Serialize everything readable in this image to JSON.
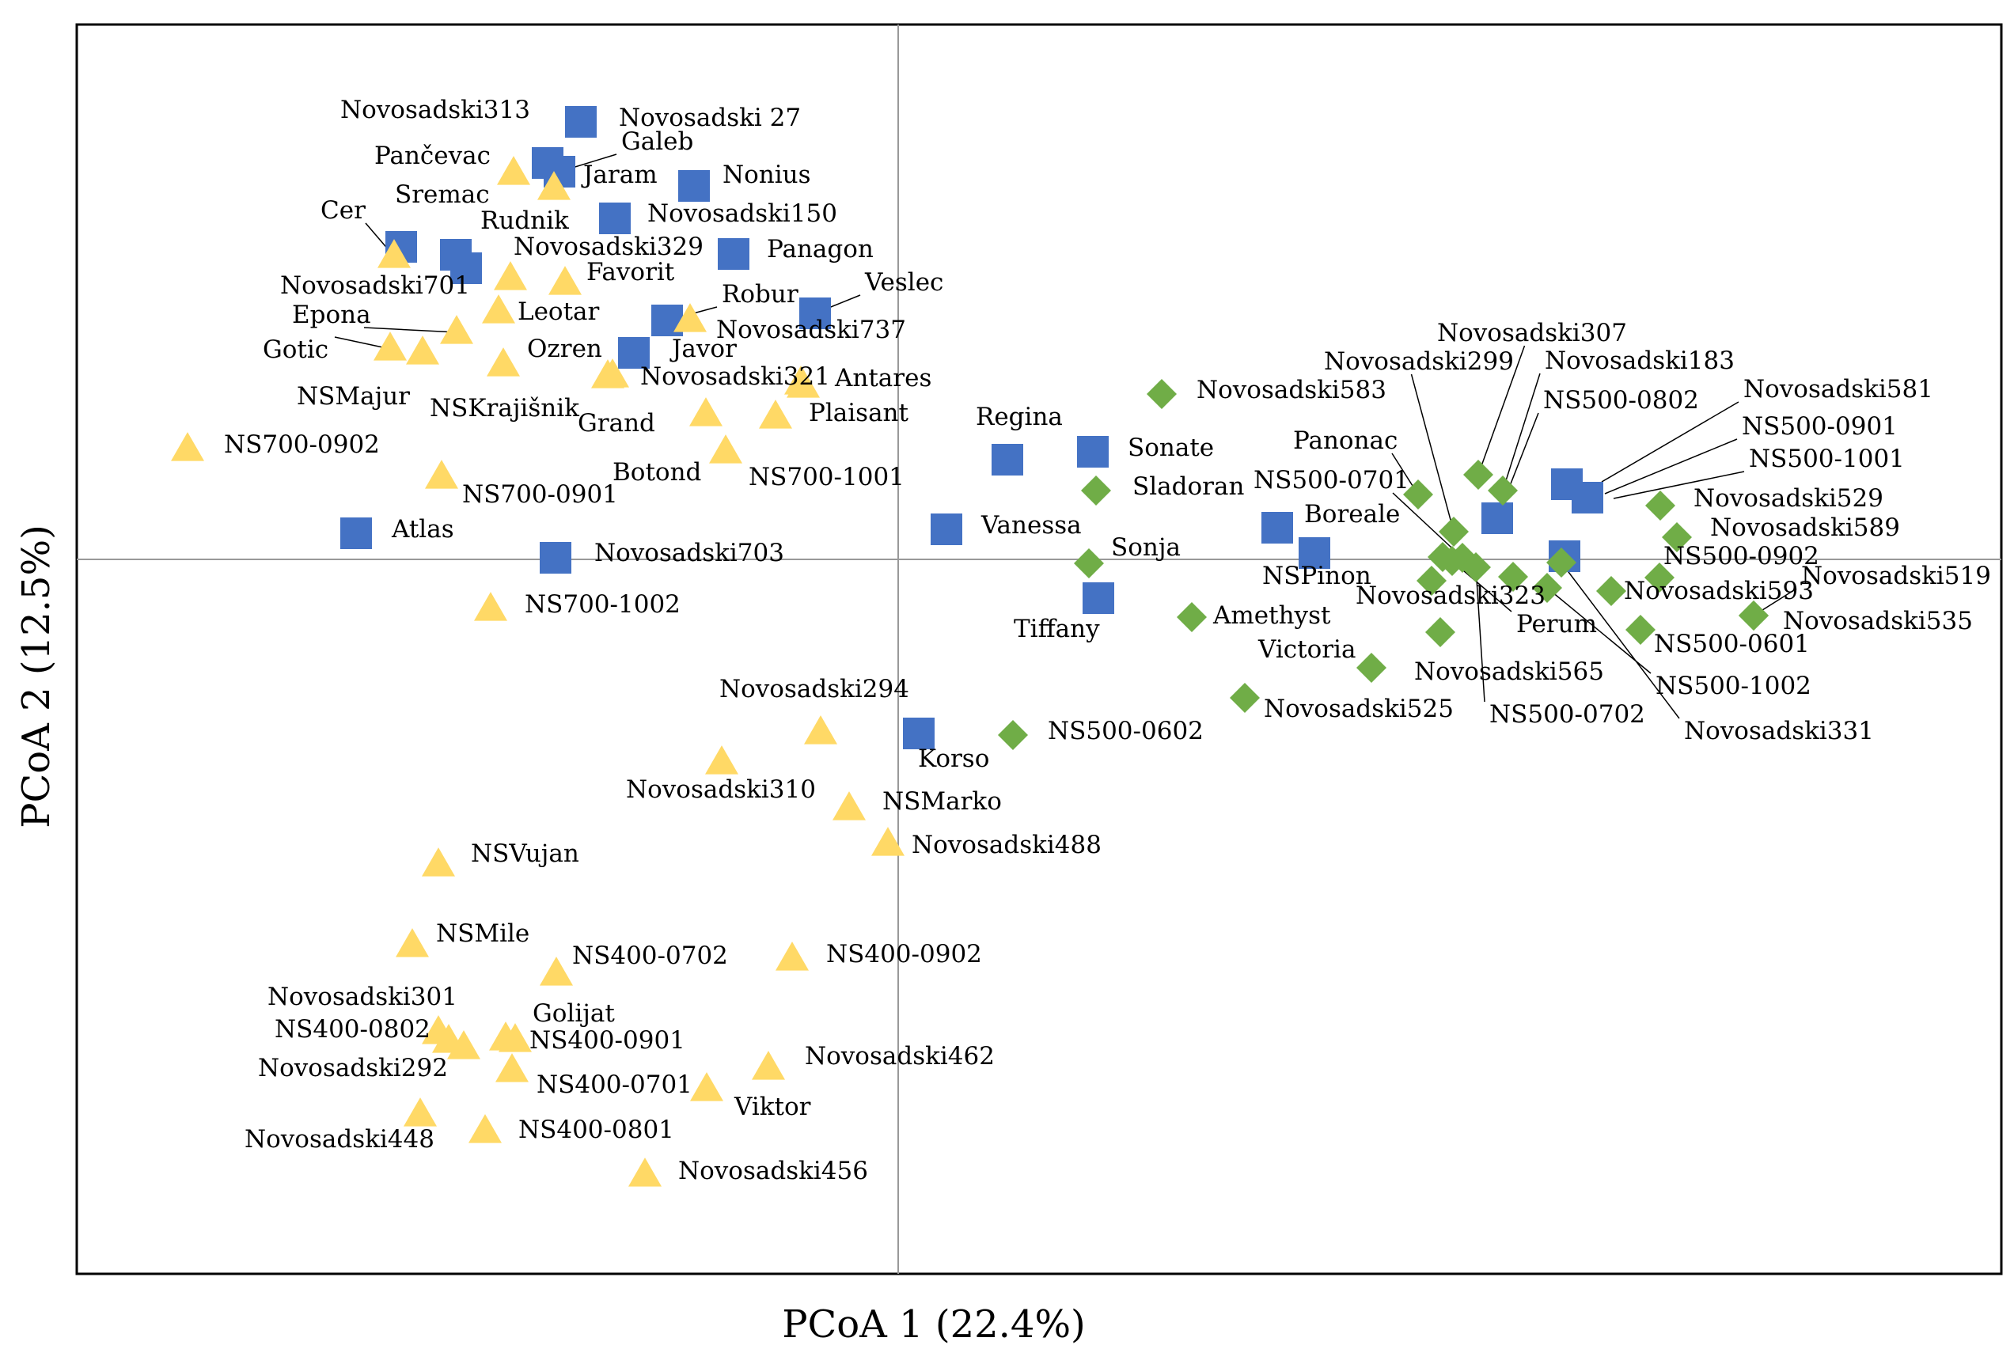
{
  "chart_data": {
    "type": "scatter",
    "title": "",
    "xlabel": "PCoA 1 (22.4%)",
    "ylabel": "PCoA 2 (12.5%)",
    "xlim": [
      -1000,
      1350
    ],
    "ylim": [
      -900,
      680
    ],
    "grid": false,
    "legend": "none",
    "colors": {
      "blue-square": "#4472C4",
      "yellow-triangle": "#FFD966",
      "green-diamond": "#70AD47",
      "refline": "#999999",
      "frame": "#000000"
    },
    "series": [
      {
        "name": "group-blue-square",
        "marker": "square",
        "points": [
          {
            "label": "Novosadski313",
            "x": -443,
            "y": 501,
            "lx": -705,
            "ly": 558,
            "anchor": "start"
          },
          {
            "label": "Novosadski 27",
            "x": -401,
            "y": 553,
            "lx": -353,
            "ly": 548,
            "anchor": "start"
          },
          {
            "label": "Galeb",
            "x": -428,
            "y": 490,
            "lx": -350,
            "ly": 518,
            "anchor": "start"
          },
          {
            "label": "Nonius",
            "x": -258,
            "y": 472,
            "lx": -222,
            "ly": 476,
            "anchor": "start"
          },
          {
            "label": "Novosadski150",
            "x": -358,
            "y": 431,
            "lx": -317,
            "ly": 427,
            "anchor": "start"
          },
          {
            "label": "Sremac",
            "x": -628,
            "y": 395,
            "lx": -636,
            "ly": 451,
            "anchor": "start"
          },
          {
            "label": "Rudnik",
            "x": -559,
            "y": 385,
            "lx": -528,
            "ly": 418,
            "anchor": "start"
          },
          {
            "label": "Novosadski701",
            "x": -546,
            "y": 368,
            "lx": -781,
            "ly": 336,
            "anchor": "start"
          },
          {
            "label": "Panagon",
            "x": -208,
            "y": 386,
            "lx": -166,
            "ly": 382,
            "anchor": "start"
          },
          {
            "label": "Veslec",
            "x": -105,
            "y": 311,
            "lx": -42,
            "ly": 340,
            "anchor": "start"
          },
          {
            "label": "Robur",
            "x": -292,
            "y": 302,
            "lx": -223,
            "ly": 325,
            "anchor": "start"
          },
          {
            "label": "Javor",
            "x": -334,
            "y": 261,
            "lx": -286,
            "ly": 256,
            "anchor": "start"
          },
          {
            "label": "Regina",
            "x": 138,
            "y": 126,
            "lx": 98,
            "ly": 170,
            "anchor": "start"
          },
          {
            "label": "Sonate",
            "x": 246,
            "y": 136,
            "lx": 290,
            "ly": 131,
            "anchor": "start"
          },
          {
            "label": "Vanessa",
            "x": 61,
            "y": 38,
            "lx": 105,
            "ly": 33,
            "anchor": "start"
          },
          {
            "label": "Atlas",
            "x": -685,
            "y": 33,
            "lx": -640,
            "ly": 28,
            "anchor": "start"
          },
          {
            "label": "Novosadski703",
            "x": -433,
            "y": 2,
            "lx": -384,
            "ly": -2,
            "anchor": "start"
          },
          {
            "label": "Boreale",
            "x": 479,
            "y": 40,
            "lx": 513,
            "ly": 47,
            "anchor": "start"
          },
          {
            "label": "NSPinon",
            "x": 526,
            "y": 8,
            "lx": 460,
            "ly": -31,
            "anchor": "start"
          },
          {
            "label": "Tiffany",
            "x": 253,
            "y": -49,
            "lx": 146,
            "ly": -98,
            "anchor": "start"
          },
          {
            "label": "Korso",
            "x": 26,
            "y": -220,
            "lx": 25,
            "ly": -262,
            "anchor": "start"
          },
          {
            "label": "",
            "x": 757,
            "y": 52
          },
          {
            "label": "",
            "x": 845,
            "y": 95
          },
          {
            "label": "",
            "x": 871,
            "y": 78
          },
          {
            "label": "",
            "x": 842,
            "y": 4
          }
        ]
      },
      {
        "name": "group-yellow-triangle",
        "marker": "triangle",
        "points": [
          {
            "label": "Pančevac",
            "x": -486,
            "y": 488,
            "lx": -662,
            "ly": 500,
            "anchor": "start"
          },
          {
            "label": "Jaram",
            "x": -435,
            "y": 469,
            "lx": -398,
            "ly": 476,
            "anchor": "start"
          },
          {
            "label": "Cer",
            "x": -637,
            "y": 383,
            "lx": -730,
            "ly": 431,
            "anchor": "start"
          },
          {
            "label": "Novosadski329",
            "x": -490,
            "y": 355,
            "lx": -486,
            "ly": 385,
            "anchor": "start"
          },
          {
            "label": "Favorit",
            "x": -421,
            "y": 349,
            "lx": -394,
            "ly": 353,
            "anchor": "start"
          },
          {
            "label": "Epona",
            "x": -558,
            "y": 287,
            "lx": -766,
            "ly": 299,
            "anchor": "start"
          },
          {
            "label": "Leotar",
            "x": -505,
            "y": 313,
            "lx": -481,
            "ly": 303,
            "anchor": "start"
          },
          {
            "label": "Gotic",
            "x": -642,
            "y": 266,
            "lx": -803,
            "ly": 255,
            "anchor": "start"
          },
          {
            "label": "NSMajur",
            "x": -601,
            "y": 261,
            "lx": -760,
            "ly": 196,
            "anchor": "start"
          },
          {
            "label": "NSKrajišnik",
            "x": -499,
            "y": 246,
            "lx": -592,
            "ly": 181,
            "anchor": "start"
          },
          {
            "label": "Ozren",
            "x": -361,
            "y": 232,
            "lx": -469,
            "ly": 256,
            "anchor": "start"
          },
          {
            "label": "Novosadski737",
            "x": -263,
            "y": 302,
            "lx": -230,
            "ly": 280,
            "anchor": "start"
          },
          {
            "label": "Grand",
            "x": -367,
            "y": 231,
            "lx": -405,
            "ly": 162,
            "anchor": "start"
          },
          {
            "label": "Novosadski321",
            "x": -123,
            "y": 223,
            "lx": -326,
            "ly": 221,
            "anchor": "start"
          },
          {
            "label": "Antares",
            "x": -120,
            "y": 219,
            "lx": -80,
            "ly": 219,
            "anchor": "start"
          },
          {
            "label": "Plaisant",
            "x": -155,
            "y": 180,
            "lx": -113,
            "ly": 175,
            "anchor": "start"
          },
          {
            "label": "Botond",
            "x": -243,
            "y": 183,
            "lx": -361,
            "ly": 100,
            "anchor": "start"
          },
          {
            "label": "NS700-1001",
            "x": -218,
            "y": 136,
            "lx": -189,
            "ly": 94,
            "anchor": "start"
          },
          {
            "label": "NS700-0902",
            "x": -898,
            "y": 139,
            "lx": -852,
            "ly": 135,
            "anchor": "start"
          },
          {
            "label": "NS700-0901",
            "x": -577,
            "y": 104,
            "lx": -551,
            "ly": 72,
            "anchor": "start"
          },
          {
            "label": "NS700-1002",
            "x": -515,
            "y": -63,
            "lx": -472,
            "ly": -67,
            "anchor": "start"
          },
          {
            "label": "Novosadski294",
            "x": -98,
            "y": -219,
            "lx": -226,
            "ly": -174,
            "anchor": "start"
          },
          {
            "label": "Novosadski310",
            "x": -223,
            "y": -257,
            "lx": -344,
            "ly": -301,
            "anchor": "start"
          },
          {
            "label": "NSMarko",
            "x": -62,
            "y": -315,
            "lx": -20,
            "ly": -316,
            "anchor": "start"
          },
          {
            "label": "Novosadski488",
            "x": -13,
            "y": -360,
            "lx": 17,
            "ly": -371,
            "anchor": "start"
          },
          {
            "label": "NSVujan",
            "x": -581,
            "y": -386,
            "lx": -540,
            "ly": -382,
            "anchor": "start"
          },
          {
            "label": "NSMile",
            "x": -614,
            "y": -488,
            "lx": -584,
            "ly": -483,
            "anchor": "start"
          },
          {
            "label": "NS400-0702",
            "x": -432,
            "y": -524,
            "lx": -412,
            "ly": -511,
            "anchor": "start"
          },
          {
            "label": "NS400-0902",
            "x": -134,
            "y": -505,
            "lx": -91,
            "ly": -509,
            "anchor": "start"
          },
          {
            "label": "Novosadski301",
            "x": -581,
            "y": -598,
            "lx": -797,
            "ly": -563,
            "anchor": "start"
          },
          {
            "label": "Golijat",
            "x": -496,
            "y": -606,
            "lx": -462,
            "ly": -584,
            "anchor": "start"
          },
          {
            "label": "NS400-0802",
            "x": -568,
            "y": -609,
            "lx": -788,
            "ly": -604,
            "anchor": "start"
          },
          {
            "label": "NS400-0901",
            "x": -484,
            "y": -608,
            "lx": -466,
            "ly": -618,
            "anchor": "start"
          },
          {
            "label": "Novosadski292",
            "x": -549,
            "y": -617,
            "lx": -809,
            "ly": -653,
            "anchor": "start"
          },
          {
            "label": "NS400-0701",
            "x": -488,
            "y": -646,
            "lx": -457,
            "ly": -674,
            "anchor": "start"
          },
          {
            "label": "Novosadski462",
            "x": -164,
            "y": -643,
            "lx": -118,
            "ly": -638,
            "anchor": "start"
          },
          {
            "label": "Viktor",
            "x": -242,
            "y": -670,
            "lx": -207,
            "ly": -702,
            "anchor": "start"
          },
          {
            "label": "Novosadski448",
            "x": -604,
            "y": -702,
            "lx": -826,
            "ly": -743,
            "anchor": "start"
          },
          {
            "label": "NS400-0801",
            "x": -522,
            "y": -723,
            "lx": -480,
            "ly": -731,
            "anchor": "start"
          },
          {
            "label": "Novosadski456",
            "x": -320,
            "y": -778,
            "lx": -278,
            "ly": -783,
            "anchor": "start"
          }
        ]
      },
      {
        "name": "group-green-diamond",
        "marker": "diamond",
        "points": [
          {
            "label": "Novosadski583",
            "x": 333,
            "y": 209,
            "lx": 377,
            "ly": 204,
            "anchor": "start"
          },
          {
            "label": "Sladoran",
            "x": 250,
            "y": 87,
            "lx": 296,
            "ly": 82,
            "anchor": "start"
          },
          {
            "label": "Sonja",
            "x": 241,
            "y": -5,
            "lx": 269,
            "ly": 5,
            "anchor": "start"
          },
          {
            "label": "Amethyst",
            "x": 371,
            "y": -73,
            "lx": 398,
            "ly": -81,
            "anchor": "start"
          },
          {
            "label": "Victoria",
            "x": 598,
            "y": -137,
            "lx": 455,
            "ly": -124,
            "anchor": "start"
          },
          {
            "label": "Novosadski525",
            "x": 438,
            "y": -175,
            "lx": 462,
            "ly": -199,
            "anchor": "start"
          },
          {
            "label": "NS500-0602",
            "x": 145,
            "y": -222,
            "lx": 189,
            "ly": -227,
            "anchor": "start"
          },
          {
            "label": "Novosadski307",
            "x": 733,
            "y": 107,
            "lx": 681,
            "ly": 276,
            "anchor": "start"
          },
          {
            "label": "Novosadski299",
            "x": 702,
            "y": 35,
            "lx": 538,
            "ly": 240,
            "anchor": "start"
          },
          {
            "label": "Panonac",
            "x": 657,
            "y": 82,
            "lx": 499,
            "ly": 140,
            "anchor": "start"
          },
          {
            "label": "NS500-0701",
            "x": 713,
            "y": 2,
            "lx": 449,
            "ly": 90,
            "anchor": "start"
          },
          {
            "label": "Novosadski323",
            "x": 674,
            "y": -27,
            "lx": 578,
            "ly": -56,
            "anchor": "start"
          },
          {
            "label": "Perum",
            "x": 700,
            "y": -2,
            "lx": 781,
            "ly": -92,
            "anchor": "start"
          },
          {
            "label": "Novosadski565",
            "x": 685,
            "y": -92,
            "lx": 652,
            "ly": -152,
            "anchor": "start"
          },
          {
            "label": "NS500-0702",
            "x": 730,
            "y": -10,
            "lx": 747,
            "ly": -206,
            "anchor": "start"
          },
          {
            "label": "",
            "x": 764,
            "y": 87
          },
          {
            "label": "",
            "x": 688,
            "y": 3
          },
          {
            "label": "",
            "x": 777,
            "y": -22
          },
          {
            "label": "Novosadski529",
            "x": 963,
            "y": 68,
            "lx": 1005,
            "ly": 67,
            "anchor": "start"
          },
          {
            "label": "Novosadski589",
            "x": 984,
            "y": 28,
            "lx": 1026,
            "ly": 30,
            "anchor": "start"
          },
          {
            "label": "NS500-0902",
            "x": 962,
            "y": -23,
            "lx": 967,
            "ly": -6,
            "anchor": "start"
          },
          {
            "label": "Novosadski593",
            "x": 901,
            "y": -40,
            "lx": 917,
            "ly": -50,
            "anchor": "start"
          },
          {
            "label": "Novosadski519",
            "x": 1081,
            "y": -71,
            "lx": 1141,
            "ly": -31,
            "anchor": "start"
          },
          {
            "label": "Novosadski535",
            "x": 1081,
            "y": -71,
            "lx": 1118,
            "ly": -88,
            "anchor": "start"
          },
          {
            "label": "NS500-0601",
            "x": 938,
            "y": -89,
            "lx": 955,
            "ly": -117,
            "anchor": "start"
          },
          {
            "label": "NS500-1002",
            "x": 820,
            "y": -36,
            "lx": 957,
            "ly": -170,
            "anchor": "start"
          },
          {
            "label": "Novosadski331",
            "x": 838,
            "y": -4,
            "lx": 993,
            "ly": -227,
            "anchor": "start"
          }
        ]
      },
      {
        "name": "labels-blue-cluster",
        "marker": "none",
        "points": [
          {
            "label": "Novosadski183",
            "x": 764,
            "y": 87,
            "lx": 817,
            "ly": 241,
            "anchor": "start"
          },
          {
            "label": "NS500-0802",
            "x": 753,
            "y": 42,
            "lx": 815,
            "ly": 191,
            "anchor": "start"
          },
          {
            "label": "Novosadski581",
            "x": 889,
            "y": 98,
            "lx": 1068,
            "ly": 205,
            "anchor": "start"
          },
          {
            "label": "NS500-0901",
            "x": 893,
            "y": 83,
            "lx": 1066,
            "ly": 158,
            "anchor": "start"
          },
          {
            "label": "NS500-1001",
            "x": 904,
            "y": 77,
            "lx": 1075,
            "ly": 117,
            "anchor": "start"
          }
        ]
      }
    ]
  }
}
